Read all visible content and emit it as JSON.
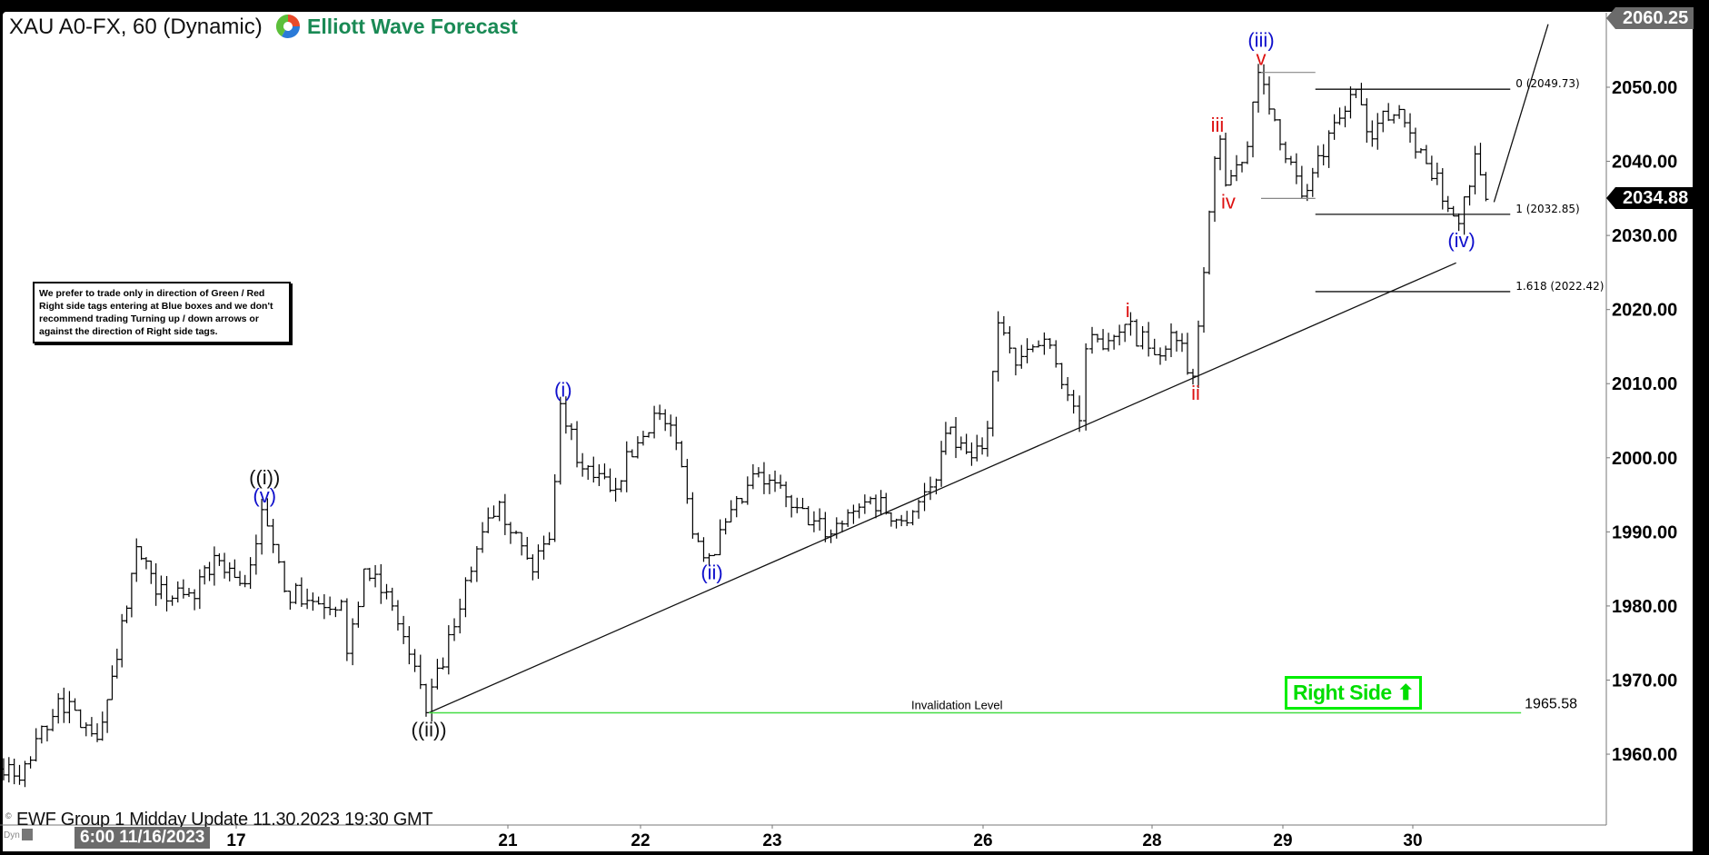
{
  "header": {
    "title": "XAU A0-FX, 60 (Dynamic)",
    "logo_text": "Elliott Wave Forecast"
  },
  "disclaimer": "We prefer to trade only in direction of Green / Red Right side tags entering at Blue boxes and we don't recommend trading Turning up / down arrows or against the direction of Right side tags.",
  "footer": {
    "copyright": "©",
    "update_text": "EWF Group 1  Midday Update 11.30.2023 19:30 GMT",
    "dyn_label": "Dyn",
    "cursor_time": "6:00 11/16/2023"
  },
  "right_side_tag": {
    "label": "Right Side",
    "direction": "up",
    "color": "#00ee00"
  },
  "price_tags": {
    "high": "2060.25",
    "current": "2034.88"
  },
  "chart_data": {
    "type": "ohlc-bar",
    "symbol": "XAU A0-FX",
    "timeframe": "60",
    "ylim": [
      1950,
      2061
    ],
    "y_ticks": [
      "2050.00",
      "2040.00",
      "2030.00",
      "2020.00",
      "2010.00",
      "2000.00",
      "1990.00",
      "1980.00",
      "1970.00",
      "1960.00"
    ],
    "x_ticks": [
      "17",
      "21",
      "22",
      "23",
      "26",
      "28",
      "29",
      "30"
    ],
    "grid": false,
    "price_path": [
      [
        "11/16 06:00",
        1973.5
      ],
      [
        "11/16 07:00",
        1975.3
      ],
      [
        "11/16 08:00",
        1956.5
      ],
      [
        "11/16 10:00",
        1962
      ],
      [
        "11/16 13:00",
        1956.5
      ],
      [
        "11/16 15:00",
        1967.5
      ],
      [
        "11/16 17:00",
        1962
      ],
      [
        "11/16 18:00",
        1972.8
      ],
      [
        "11/16 19:00",
        1988
      ],
      [
        "11/16 20:00",
        1981.6
      ],
      [
        "11/16 22:00",
        1981
      ],
      [
        "11/16 23:00",
        1986.8
      ],
      [
        "11/17 02:00",
        1983
      ],
      [
        "11/17 05:00",
        1993
      ],
      [
        "11/17 09:00",
        1982
      ],
      [
        "11/17 14:00",
        1980.6
      ],
      [
        "11/17 19:00",
        1980.6
      ],
      [
        "11/17 20:00",
        1973.6
      ],
      [
        "11/17 23:00",
        1985
      ],
      [
        "11/20 04:00",
        1980
      ],
      [
        "11/20 10:00",
        1965.6
      ],
      [
        "11/20 15:00",
        1977.2
      ],
      [
        "11/20 20:00",
        1990
      ],
      [
        "11/20 23:00",
        1994
      ],
      [
        "11/21 05:00",
        1984.6
      ],
      [
        "11/21 08:00",
        1989
      ],
      [
        "11/21 10:00",
        2007.3
      ],
      [
        "11/21 14:00",
        1998.5
      ],
      [
        "11/21 19:00",
        1995.6
      ],
      [
        "11/22 03:00",
        2006
      ],
      [
        "11/22 07:00",
        2002
      ],
      [
        "11/22 10:00",
        1989.7
      ],
      [
        "11/22 13:00",
        1986.8
      ],
      [
        "11/22 22:00",
        1998
      ],
      [
        "11/23 05:00",
        1993.3
      ],
      [
        "11/23 14:00",
        1989.7
      ],
      [
        "11/23 23:00",
        1994.5
      ],
      [
        "11/24 06:00",
        1991.5
      ],
      [
        "11/24 14:00",
        1997
      ],
      [
        "11/24 16:00",
        2003.3
      ],
      [
        "11/24 22:00",
        2000
      ],
      [
        "11/26 02:00",
        2004
      ],
      [
        "11/26 05:00",
        2018.2
      ],
      [
        "11/26 10:00",
        2012.5
      ],
      [
        "11/26 18:00",
        2016
      ],
      [
        "11/27 04:00",
        2005
      ],
      [
        "11/27 06:00",
        2014.7
      ],
      [
        "11/27 17:00",
        2018
      ],
      [
        "11/28 01:00",
        2013.9
      ],
      [
        "11/28 04:00",
        2016.9
      ],
      [
        "11/28 08:00",
        2011
      ],
      [
        "11/28 10:00",
        2025
      ],
      [
        "11/28 12:00",
        2040.4
      ],
      [
        "11/28 13:00",
        2043
      ],
      [
        "11/28 14:00",
        2036.8
      ],
      [
        "11/28 18:00",
        2042
      ],
      [
        "11/28 20:00",
        2052
      ],
      [
        "11/28 23:00",
        2045.6
      ],
      [
        "11/29 04:00",
        2035.3
      ],
      [
        "11/29 14:00",
        2049.7
      ],
      [
        "11/29 16:00",
        2044
      ],
      [
        "11/29 22:00",
        2047
      ],
      [
        "11/30 03:00",
        2039.7
      ],
      [
        "11/30 09:00",
        2031.6
      ],
      [
        "11/30 12:00",
        2041
      ],
      [
        "11/30 14:00",
        2034.88
      ]
    ],
    "wave_labels": [
      {
        "text": "(iii)",
        "t": "11/16 07:00",
        "price": 1975.3,
        "pos": "above2",
        "color": "#1010cc"
      },
      {
        "text": "v",
        "t": "11/16 07:00",
        "price": 1975.3,
        "pos": "above",
        "color": "#dd1111"
      },
      {
        "text": "(iv)",
        "t": "11/16 08:00",
        "price": 1956.5,
        "pos": "below",
        "color": "#1010cc"
      },
      {
        "text": "((i))",
        "t": "11/17 05:00",
        "price": 1993,
        "pos": "above2",
        "color": "#111111"
      },
      {
        "text": "(v)",
        "t": "11/17 05:00",
        "price": 1993,
        "pos": "above",
        "color": "#1010cc"
      },
      {
        "text": "((ii))",
        "t": "11/20 10:00",
        "price": 1965.6,
        "pos": "below",
        "color": "#111111"
      },
      {
        "text": "(i)",
        "t": "11/21 10:00",
        "price": 2007.3,
        "pos": "above",
        "color": "#1010cc"
      },
      {
        "text": "(ii)",
        "t": "11/22 13:00",
        "price": 1986.8,
        "pos": "below",
        "color": "#1010cc"
      },
      {
        "text": "i",
        "t": "11/27 17:00",
        "price": 2018,
        "pos": "above",
        "color": "#dd1111"
      },
      {
        "text": "ii",
        "t": "11/28 08:00",
        "price": 2011,
        "pos": "below",
        "color": "#dd1111"
      },
      {
        "text": "iii",
        "t": "11/28 12:00",
        "price": 2043,
        "pos": "above",
        "color": "#dd1111"
      },
      {
        "text": "iv",
        "t": "11/28 14:00",
        "price": 2036.8,
        "pos": "below",
        "color": "#dd1111"
      },
      {
        "text": "(iii)",
        "t": "11/28 20:00",
        "price": 2052,
        "pos": "above2",
        "color": "#1010cc"
      },
      {
        "text": "v",
        "t": "11/28 20:00",
        "price": 2052,
        "pos": "above",
        "color": "#dd1111"
      },
      {
        "text": "(iv)",
        "t": "11/30 09:00",
        "price": 2031.6,
        "pos": "below",
        "color": "#1010cc"
      }
    ],
    "trendline": {
      "from": [
        "11/20 10:00",
        1965.6
      ],
      "to": [
        "11/30 08:00",
        2026.3
      ]
    },
    "projection": {
      "from": [
        "11/30 15:00",
        2034.5
      ],
      "to": [
        "12/01 01:00",
        2058.5
      ]
    },
    "invalidation": {
      "label": "Invalidation Level",
      "price": 1965.58,
      "price_label": "1965.58",
      "from": "11/20 10:00",
      "to": "11/30 20:00",
      "color": "#44dd44"
    },
    "fib_levels": [
      {
        "label": "0 (2049.73)",
        "price": 2049.73
      },
      {
        "label": "1 (2032.85)",
        "price": 2032.85
      },
      {
        "label": "1.618 (2022.42)",
        "price": 2022.42
      }
    ],
    "fib_from": "11/29 06:00",
    "fib_to": "11/30 18:00",
    "range_marks": [
      {
        "price": 2052,
        "from": "11/28 20:00",
        "to": "11/29 06:00"
      },
      {
        "price": 2035,
        "from": "11/28 20:00",
        "to": "11/29 06:00"
      }
    ]
  }
}
